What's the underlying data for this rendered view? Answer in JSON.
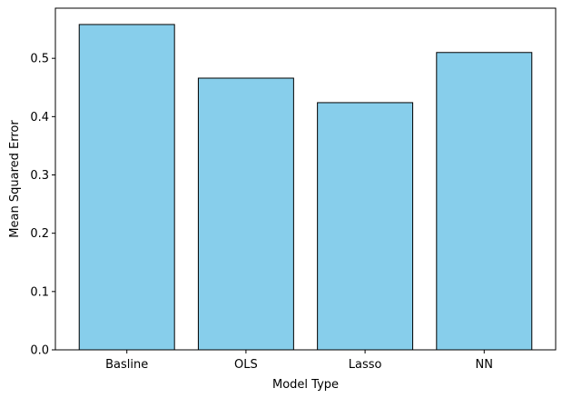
{
  "chart_data": {
    "type": "bar",
    "title": "",
    "xlabel": "Model Type",
    "ylabel": "Mean Squared Error",
    "categories": [
      "Basline",
      "OLS",
      "Lasso",
      "NN"
    ],
    "values": [
      0.558,
      0.466,
      0.424,
      0.51
    ],
    "ylim": [
      0,
      0.586
    ],
    "yticks": [
      0.0,
      0.1,
      0.2,
      0.3,
      0.4,
      0.5
    ],
    "ytick_labels": [
      "0.0",
      "0.1",
      "0.2",
      "0.3",
      "0.4",
      "0.5"
    ],
    "grid": false,
    "legend": "none",
    "bar_color": "#87ceeb",
    "bar_edge_color": "#000000"
  }
}
